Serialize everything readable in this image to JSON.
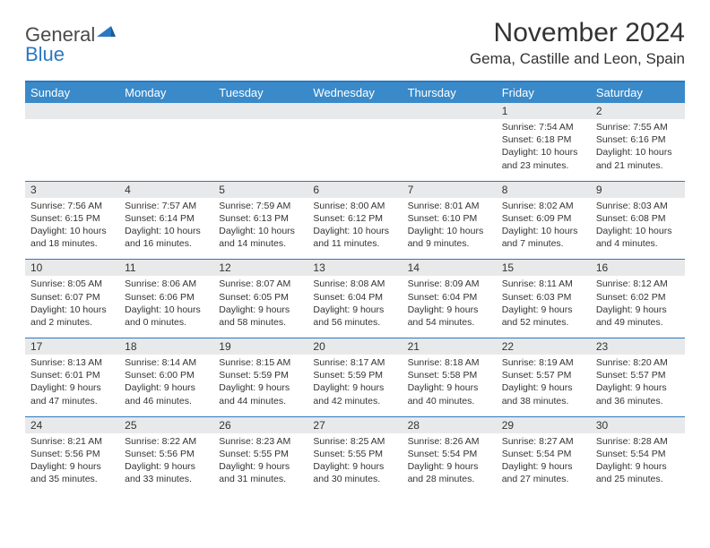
{
  "logo": {
    "general": "General",
    "blue": "Blue"
  },
  "title": "November 2024",
  "location": "Gema, Castille and Leon, Spain",
  "weekdays": [
    "Sunday",
    "Monday",
    "Tuesday",
    "Wednesday",
    "Thursday",
    "Friday",
    "Saturday"
  ],
  "colors": {
    "header_bg": "#3a8ac9",
    "border": "#2b78c2",
    "daynum_bg": "#e8e9ea",
    "text": "#333333",
    "logo_blue": "#2b78c2",
    "logo_grey": "#4a4a4a"
  },
  "weeks": [
    [
      {
        "num": "",
        "lines": []
      },
      {
        "num": "",
        "lines": []
      },
      {
        "num": "",
        "lines": []
      },
      {
        "num": "",
        "lines": []
      },
      {
        "num": "",
        "lines": []
      },
      {
        "num": "1",
        "lines": [
          "Sunrise: 7:54 AM",
          "Sunset: 6:18 PM",
          "Daylight: 10 hours",
          "and 23 minutes."
        ]
      },
      {
        "num": "2",
        "lines": [
          "Sunrise: 7:55 AM",
          "Sunset: 6:16 PM",
          "Daylight: 10 hours",
          "and 21 minutes."
        ]
      }
    ],
    [
      {
        "num": "3",
        "lines": [
          "Sunrise: 7:56 AM",
          "Sunset: 6:15 PM",
          "Daylight: 10 hours",
          "and 18 minutes."
        ]
      },
      {
        "num": "4",
        "lines": [
          "Sunrise: 7:57 AM",
          "Sunset: 6:14 PM",
          "Daylight: 10 hours",
          "and 16 minutes."
        ]
      },
      {
        "num": "5",
        "lines": [
          "Sunrise: 7:59 AM",
          "Sunset: 6:13 PM",
          "Daylight: 10 hours",
          "and 14 minutes."
        ]
      },
      {
        "num": "6",
        "lines": [
          "Sunrise: 8:00 AM",
          "Sunset: 6:12 PM",
          "Daylight: 10 hours",
          "and 11 minutes."
        ]
      },
      {
        "num": "7",
        "lines": [
          "Sunrise: 8:01 AM",
          "Sunset: 6:10 PM",
          "Daylight: 10 hours",
          "and 9 minutes."
        ]
      },
      {
        "num": "8",
        "lines": [
          "Sunrise: 8:02 AM",
          "Sunset: 6:09 PM",
          "Daylight: 10 hours",
          "and 7 minutes."
        ]
      },
      {
        "num": "9",
        "lines": [
          "Sunrise: 8:03 AM",
          "Sunset: 6:08 PM",
          "Daylight: 10 hours",
          "and 4 minutes."
        ]
      }
    ],
    [
      {
        "num": "10",
        "lines": [
          "Sunrise: 8:05 AM",
          "Sunset: 6:07 PM",
          "Daylight: 10 hours",
          "and 2 minutes."
        ]
      },
      {
        "num": "11",
        "lines": [
          "Sunrise: 8:06 AM",
          "Sunset: 6:06 PM",
          "Daylight: 10 hours",
          "and 0 minutes."
        ]
      },
      {
        "num": "12",
        "lines": [
          "Sunrise: 8:07 AM",
          "Sunset: 6:05 PM",
          "Daylight: 9 hours",
          "and 58 minutes."
        ]
      },
      {
        "num": "13",
        "lines": [
          "Sunrise: 8:08 AM",
          "Sunset: 6:04 PM",
          "Daylight: 9 hours",
          "and 56 minutes."
        ]
      },
      {
        "num": "14",
        "lines": [
          "Sunrise: 8:09 AM",
          "Sunset: 6:04 PM",
          "Daylight: 9 hours",
          "and 54 minutes."
        ]
      },
      {
        "num": "15",
        "lines": [
          "Sunrise: 8:11 AM",
          "Sunset: 6:03 PM",
          "Daylight: 9 hours",
          "and 52 minutes."
        ]
      },
      {
        "num": "16",
        "lines": [
          "Sunrise: 8:12 AM",
          "Sunset: 6:02 PM",
          "Daylight: 9 hours",
          "and 49 minutes."
        ]
      }
    ],
    [
      {
        "num": "17",
        "lines": [
          "Sunrise: 8:13 AM",
          "Sunset: 6:01 PM",
          "Daylight: 9 hours",
          "and 47 minutes."
        ]
      },
      {
        "num": "18",
        "lines": [
          "Sunrise: 8:14 AM",
          "Sunset: 6:00 PM",
          "Daylight: 9 hours",
          "and 46 minutes."
        ]
      },
      {
        "num": "19",
        "lines": [
          "Sunrise: 8:15 AM",
          "Sunset: 5:59 PM",
          "Daylight: 9 hours",
          "and 44 minutes."
        ]
      },
      {
        "num": "20",
        "lines": [
          "Sunrise: 8:17 AM",
          "Sunset: 5:59 PM",
          "Daylight: 9 hours",
          "and 42 minutes."
        ]
      },
      {
        "num": "21",
        "lines": [
          "Sunrise: 8:18 AM",
          "Sunset: 5:58 PM",
          "Daylight: 9 hours",
          "and 40 minutes."
        ]
      },
      {
        "num": "22",
        "lines": [
          "Sunrise: 8:19 AM",
          "Sunset: 5:57 PM",
          "Daylight: 9 hours",
          "and 38 minutes."
        ]
      },
      {
        "num": "23",
        "lines": [
          "Sunrise: 8:20 AM",
          "Sunset: 5:57 PM",
          "Daylight: 9 hours",
          "and 36 minutes."
        ]
      }
    ],
    [
      {
        "num": "24",
        "lines": [
          "Sunrise: 8:21 AM",
          "Sunset: 5:56 PM",
          "Daylight: 9 hours",
          "and 35 minutes."
        ]
      },
      {
        "num": "25",
        "lines": [
          "Sunrise: 8:22 AM",
          "Sunset: 5:56 PM",
          "Daylight: 9 hours",
          "and 33 minutes."
        ]
      },
      {
        "num": "26",
        "lines": [
          "Sunrise: 8:23 AM",
          "Sunset: 5:55 PM",
          "Daylight: 9 hours",
          "and 31 minutes."
        ]
      },
      {
        "num": "27",
        "lines": [
          "Sunrise: 8:25 AM",
          "Sunset: 5:55 PM",
          "Daylight: 9 hours",
          "and 30 minutes."
        ]
      },
      {
        "num": "28",
        "lines": [
          "Sunrise: 8:26 AM",
          "Sunset: 5:54 PM",
          "Daylight: 9 hours",
          "and 28 minutes."
        ]
      },
      {
        "num": "29",
        "lines": [
          "Sunrise: 8:27 AM",
          "Sunset: 5:54 PM",
          "Daylight: 9 hours",
          "and 27 minutes."
        ]
      },
      {
        "num": "30",
        "lines": [
          "Sunrise: 8:28 AM",
          "Sunset: 5:54 PM",
          "Daylight: 9 hours",
          "and 25 minutes."
        ]
      }
    ]
  ]
}
